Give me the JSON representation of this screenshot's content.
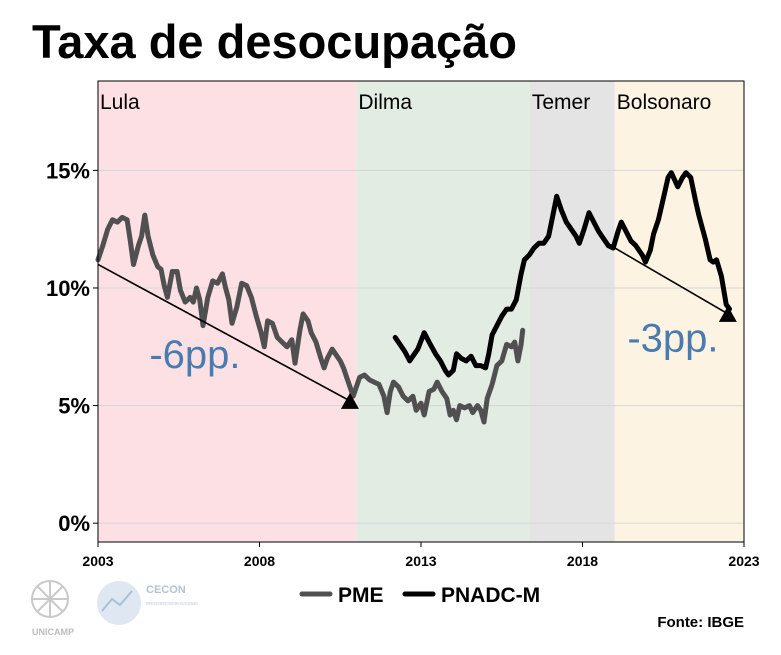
{
  "title": "Taxa de desocupação",
  "source": "Fonte: IBGE",
  "logos": {
    "unicamp": "UNICAMP",
    "cecon": "CECON",
    "cecon_sub": "CENTRO DE ESTUDOS DE CONJUNTURA E POLÍTICA ECONÔMICA"
  },
  "chart_data": {
    "type": "line",
    "title": "Taxa de desocupação",
    "xlabel": "",
    "ylabel": "",
    "xlim": [
      2003,
      2023
    ],
    "ylim": [
      -0.8,
      18.8
    ],
    "x_ticks": [
      2003,
      2008,
      2013,
      2018,
      2023
    ],
    "x_tick_labels": [
      "2003",
      "2008",
      "2013",
      "2018",
      "2023"
    ],
    "y_ticks": [
      0,
      5,
      10,
      15
    ],
    "y_tick_labels": [
      "0%",
      "5%",
      "10%",
      "15%"
    ],
    "grid": true,
    "legend": "bottom",
    "periods": [
      {
        "label": "Lula",
        "start": 2003,
        "end": 2011,
        "color": "#fde0e3"
      },
      {
        "label": "Dilma",
        "start": 2011,
        "end": 2016.37,
        "color": "#e2ece3"
      },
      {
        "label": "Temer",
        "start": 2016.37,
        "end": 2019,
        "color": "#e4e4e4"
      },
      {
        "label": "Bolsonaro",
        "start": 2019,
        "end": 2023,
        "color": "#fdf3e2"
      }
    ],
    "series": [
      {
        "name": "PME",
        "color": "#505050",
        "points": [
          [
            2003.0,
            11.2
          ],
          [
            2003.15,
            11.8
          ],
          [
            2003.3,
            12.5
          ],
          [
            2003.45,
            12.9
          ],
          [
            2003.6,
            12.8
          ],
          [
            2003.75,
            13.0
          ],
          [
            2003.9,
            12.9
          ],
          [
            2004.0,
            12.0
          ],
          [
            2004.1,
            11.0
          ],
          [
            2004.25,
            11.8
          ],
          [
            2004.35,
            12.2
          ],
          [
            2004.45,
            13.1
          ],
          [
            2004.55,
            12.2
          ],
          [
            2004.7,
            11.4
          ],
          [
            2004.85,
            10.9
          ],
          [
            2004.95,
            10.8
          ],
          [
            2005.05,
            10.1
          ],
          [
            2005.15,
            9.6
          ],
          [
            2005.3,
            10.7
          ],
          [
            2005.45,
            10.7
          ],
          [
            2005.55,
            9.9
          ],
          [
            2005.7,
            9.4
          ],
          [
            2005.85,
            9.6
          ],
          [
            2005.95,
            9.4
          ],
          [
            2006.05,
            10.0
          ],
          [
            2006.15,
            9.5
          ],
          [
            2006.25,
            8.4
          ],
          [
            2006.4,
            9.6
          ],
          [
            2006.55,
            10.3
          ],
          [
            2006.7,
            10.2
          ],
          [
            2006.85,
            10.6
          ],
          [
            2006.95,
            10.0
          ],
          [
            2007.05,
            9.5
          ],
          [
            2007.15,
            8.5
          ],
          [
            2007.3,
            9.2
          ],
          [
            2007.45,
            10.2
          ],
          [
            2007.6,
            10.1
          ],
          [
            2007.75,
            9.6
          ],
          [
            2007.9,
            8.8
          ],
          [
            2008.05,
            8.1
          ],
          [
            2008.15,
            7.5
          ],
          [
            2008.25,
            8.6
          ],
          [
            2008.4,
            8.5
          ],
          [
            2008.55,
            7.9
          ],
          [
            2008.7,
            7.7
          ],
          [
            2008.85,
            7.5
          ],
          [
            2009.0,
            7.8
          ],
          [
            2009.1,
            6.8
          ],
          [
            2009.25,
            8.2
          ],
          [
            2009.35,
            8.9
          ],
          [
            2009.5,
            8.6
          ],
          [
            2009.6,
            8.1
          ],
          [
            2009.75,
            7.7
          ],
          [
            2009.9,
            7.0
          ],
          [
            2010.0,
            6.6
          ],
          [
            2010.1,
            7.0
          ],
          [
            2010.25,
            7.4
          ],
          [
            2010.35,
            7.2
          ],
          [
            2010.5,
            6.9
          ],
          [
            2010.6,
            6.6
          ],
          [
            2010.75,
            6.0
          ],
          [
            2010.9,
            5.4
          ],
          [
            2011.0,
            5.8
          ],
          [
            2011.1,
            6.2
          ],
          [
            2011.25,
            6.3
          ],
          [
            2011.4,
            6.1
          ],
          [
            2011.55,
            6.0
          ],
          [
            2011.7,
            5.9
          ],
          [
            2011.85,
            5.4
          ],
          [
            2011.95,
            4.7
          ],
          [
            2012.05,
            5.6
          ],
          [
            2012.15,
            6.0
          ],
          [
            2012.3,
            5.8
          ],
          [
            2012.45,
            5.4
          ],
          [
            2012.6,
            5.2
          ],
          [
            2012.75,
            5.4
          ],
          [
            2012.85,
            4.8
          ],
          [
            2013.0,
            5.1
          ],
          [
            2013.1,
            4.6
          ],
          [
            2013.25,
            5.6
          ],
          [
            2013.4,
            5.7
          ],
          [
            2013.5,
            6.0
          ],
          [
            2013.65,
            5.6
          ],
          [
            2013.8,
            5.3
          ],
          [
            2013.9,
            4.6
          ],
          [
            2014.0,
            4.8
          ],
          [
            2014.1,
            4.4
          ],
          [
            2014.2,
            5.0
          ],
          [
            2014.35,
            4.9
          ],
          [
            2014.5,
            5.0
          ],
          [
            2014.6,
            4.7
          ],
          [
            2014.75,
            5.0
          ],
          [
            2014.85,
            4.8
          ],
          [
            2014.95,
            4.3
          ],
          [
            2015.05,
            5.3
          ],
          [
            2015.2,
            5.9
          ],
          [
            2015.35,
            6.7
          ],
          [
            2015.5,
            6.9
          ],
          [
            2015.65,
            7.6
          ],
          [
            2015.8,
            7.5
          ],
          [
            2015.9,
            7.7
          ],
          [
            2016.0,
            6.9
          ],
          [
            2016.1,
            7.6
          ],
          [
            2016.15,
            8.2
          ]
        ]
      },
      {
        "name": "PNADC-M",
        "color": "#000000",
        "points": [
          [
            2012.2,
            7.9
          ],
          [
            2012.35,
            7.6
          ],
          [
            2012.5,
            7.3
          ],
          [
            2012.65,
            6.9
          ],
          [
            2012.75,
            7.1
          ],
          [
            2012.9,
            7.4
          ],
          [
            2013.1,
            8.1
          ],
          [
            2013.25,
            7.7
          ],
          [
            2013.45,
            7.2
          ],
          [
            2013.6,
            6.9
          ],
          [
            2013.75,
            6.5
          ],
          [
            2013.85,
            6.3
          ],
          [
            2014.0,
            6.5
          ],
          [
            2014.1,
            7.2
          ],
          [
            2014.25,
            7.0
          ],
          [
            2014.4,
            6.9
          ],
          [
            2014.55,
            7.1
          ],
          [
            2014.7,
            6.7
          ],
          [
            2014.85,
            6.7
          ],
          [
            2015.0,
            6.6
          ],
          [
            2015.1,
            7.2
          ],
          [
            2015.2,
            8.0
          ],
          [
            2015.35,
            8.4
          ],
          [
            2015.5,
            8.8
          ],
          [
            2015.65,
            9.1
          ],
          [
            2015.8,
            9.1
          ],
          [
            2015.95,
            9.5
          ],
          [
            2016.1,
            10.6
          ],
          [
            2016.2,
            11.2
          ],
          [
            2016.35,
            11.4
          ],
          [
            2016.5,
            11.7
          ],
          [
            2016.65,
            11.9
          ],
          [
            2016.8,
            11.9
          ],
          [
            2016.95,
            12.2
          ],
          [
            2017.1,
            13.2
          ],
          [
            2017.2,
            13.9
          ],
          [
            2017.35,
            13.3
          ],
          [
            2017.5,
            12.8
          ],
          [
            2017.65,
            12.5
          ],
          [
            2017.8,
            12.2
          ],
          [
            2017.9,
            11.9
          ],
          [
            2018.05,
            12.5
          ],
          [
            2018.2,
            13.2
          ],
          [
            2018.35,
            12.8
          ],
          [
            2018.5,
            12.4
          ],
          [
            2018.65,
            12.1
          ],
          [
            2018.8,
            11.8
          ],
          [
            2018.95,
            11.7
          ],
          [
            2019.1,
            12.4
          ],
          [
            2019.2,
            12.8
          ],
          [
            2019.35,
            12.4
          ],
          [
            2019.5,
            12.0
          ],
          [
            2019.65,
            11.8
          ],
          [
            2019.85,
            11.4
          ],
          [
            2019.95,
            11.1
          ],
          [
            2020.1,
            11.6
          ],
          [
            2020.2,
            12.3
          ],
          [
            2020.35,
            12.9
          ],
          [
            2020.5,
            13.8
          ],
          [
            2020.65,
            14.7
          ],
          [
            2020.75,
            14.9
          ],
          [
            2020.85,
            14.6
          ],
          [
            2020.95,
            14.3
          ],
          [
            2021.1,
            14.7
          ],
          [
            2021.2,
            14.9
          ],
          [
            2021.35,
            14.7
          ],
          [
            2021.5,
            13.7
          ],
          [
            2021.6,
            13.1
          ],
          [
            2021.8,
            12.1
          ],
          [
            2021.95,
            11.2
          ],
          [
            2022.05,
            11.1
          ],
          [
            2022.15,
            11.2
          ],
          [
            2022.3,
            10.5
          ],
          [
            2022.45,
            9.3
          ],
          [
            2022.55,
            9.1
          ]
        ]
      }
    ],
    "trend_arrows": [
      {
        "from": [
          2003.0,
          11.0
        ],
        "to": [
          2010.8,
          5.2
        ],
        "label": "-6pp.",
        "label_at": [
          2006.0,
          6.6
        ]
      },
      {
        "from": [
          2019.0,
          11.7
        ],
        "to": [
          2022.5,
          8.9
        ],
        "label": "-3pp.",
        "label_at": [
          2020.8,
          7.3
        ]
      }
    ]
  }
}
